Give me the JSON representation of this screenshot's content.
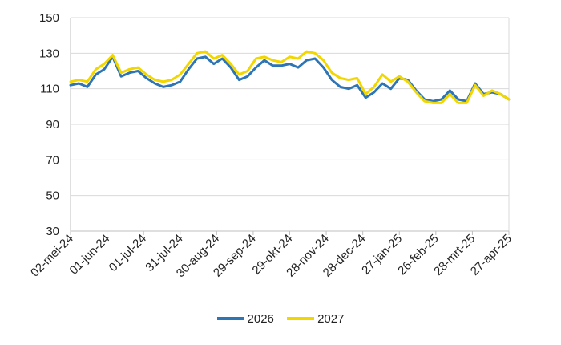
{
  "chart_data": {
    "type": "line",
    "title": "",
    "xlabel": "",
    "ylabel": "",
    "ylim": [
      30,
      150
    ],
    "y_ticks": [
      "30",
      "50",
      "70",
      "90",
      "110",
      "130",
      "150"
    ],
    "x_ticks": [
      "02-mei-24",
      "01-jun-24",
      "01-jul-24",
      "31-jul-24",
      "30-aug-24",
      "29-sep-24",
      "29-okt-24",
      "28-nov-24",
      "28-dec-24",
      "27-jan-25",
      "26-feb-25",
      "28-mrt-25",
      "27-apr-25"
    ],
    "grid": "horizontal",
    "legend_position": "bottom",
    "x": [
      "02-mei-24",
      "09-mei-24",
      "16-mei-24",
      "23-mei-24",
      "30-mei-24",
      "06-jun-24",
      "13-jun-24",
      "20-jun-24",
      "27-jun-24",
      "04-jul-24",
      "11-jul-24",
      "18-jul-24",
      "25-jul-24",
      "01-aug-24",
      "08-aug-24",
      "15-aug-24",
      "22-aug-24",
      "29-aug-24",
      "05-sep-24",
      "12-sep-24",
      "19-sep-24",
      "26-sep-24",
      "03-okt-24",
      "10-okt-24",
      "17-okt-24",
      "24-okt-24",
      "31-okt-24",
      "07-nov-24",
      "14-nov-24",
      "21-nov-24",
      "28-nov-24",
      "05-dec-24",
      "12-dec-24",
      "19-dec-24",
      "26-dec-24",
      "02-jan-25",
      "09-jan-25",
      "16-jan-25",
      "23-jan-25",
      "30-jan-25",
      "06-feb-25",
      "13-feb-25",
      "20-feb-25",
      "27-feb-25",
      "06-mrt-25",
      "13-mrt-25",
      "20-mrt-25",
      "27-mrt-25",
      "03-apr-25",
      "10-apr-25",
      "17-apr-25",
      "24-apr-25",
      "01-mei-25"
    ],
    "series": [
      {
        "name": "2026",
        "color": "#2e75b6",
        "values": [
          112,
          113,
          111,
          118,
          121,
          128,
          117,
          119,
          120,
          116,
          113,
          111,
          112,
          114,
          121,
          127,
          128,
          124,
          127,
          122,
          115,
          117,
          122,
          126,
          123,
          123,
          124,
          122,
          126,
          127,
          122,
          115,
          111,
          110,
          112,
          105,
          108,
          113,
          110,
          116,
          115,
          109,
          104,
          103,
          104,
          109,
          104,
          103,
          113,
          107,
          108,
          107,
          104
        ]
      },
      {
        "name": "2027",
        "color": "#f2d600",
        "values": [
          114,
          115,
          114,
          121,
          124,
          129,
          119,
          121,
          122,
          118,
          115,
          114,
          115,
          118,
          124,
          130,
          131,
          127,
          129,
          124,
          118,
          120,
          127,
          128,
          126,
          125,
          128,
          127,
          131,
          130,
          126,
          119,
          116,
          115,
          116,
          107,
          111,
          118,
          114,
          117,
          114,
          108,
          103,
          102,
          102,
          107,
          102,
          102,
          112,
          106,
          109,
          107,
          104
        ]
      }
    ]
  }
}
